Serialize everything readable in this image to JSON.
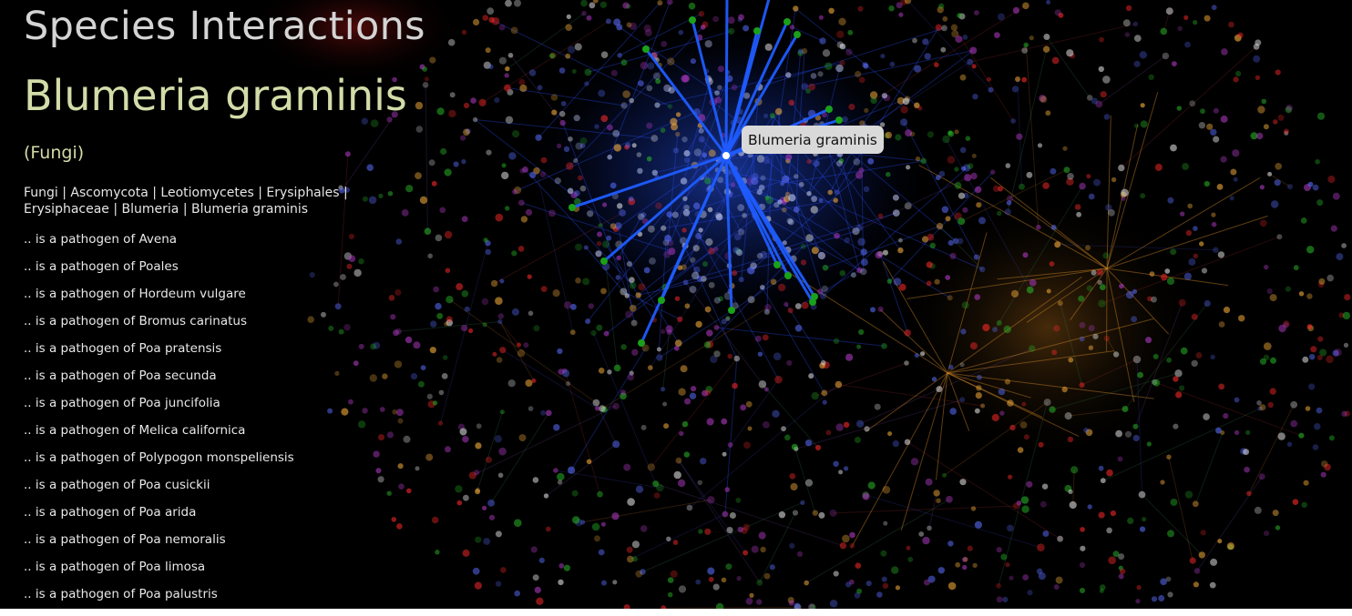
{
  "app": {
    "title": "Species Interactions"
  },
  "selection": {
    "species": "Blumeria graminis",
    "kingdom_tag": "(Fungi)",
    "taxonomy_path": "Fungi | Ascomycota | Leotiomycetes | Erysiphales | Erysiphaceae | Blumeria | Blumeria graminis",
    "interactions": [
      ".. is a pathogen of Avena",
      ".. is a pathogen of Poales",
      ".. is a pathogen of Hordeum vulgare",
      ".. is a pathogen of Bromus carinatus",
      ".. is a pathogen of Poa pratensis",
      ".. is a pathogen of Poa secunda",
      ".. is a pathogen of Poa juncifolia",
      ".. is a pathogen of Melica californica",
      ".. is a pathogen of Polypogon monspeliensis",
      ".. is a pathogen of Poa cusickii",
      ".. is a pathogen of Poa arida",
      ".. is a pathogen of Poa nemoralis",
      ".. is a pathogen of Poa limosa",
      ".. is a pathogen of Poa palustris"
    ]
  },
  "tooltip": {
    "label": "Blumeria graminis"
  },
  "colors": {
    "background": "#000000",
    "highlight_edge": "#1f5cff",
    "selected_node": "#ffffff",
    "neighbor_node": "#1aa01a",
    "species_title": "#d2dca8",
    "faint_node_palette": [
      "#e6e6e6",
      "#ff2a2a",
      "#ffb43c",
      "#28b428",
      "#5a6eff",
      "#b43cc8"
    ],
    "faint_edge_palette": [
      "#3c46c8",
      "#7a4aa8",
      "#c8782a",
      "#b43232",
      "#3c8a5a"
    ]
  },
  "icons": {
    "selected_node": "filled-circle-icon",
    "neighbor_node": "filled-circle-icon"
  }
}
